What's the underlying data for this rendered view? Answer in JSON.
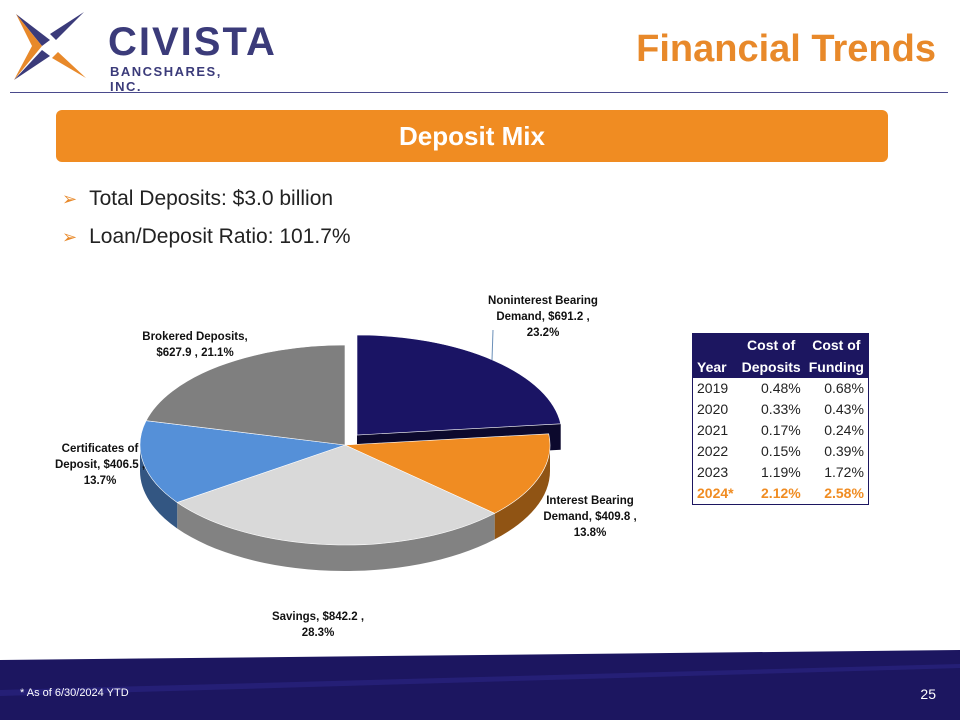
{
  "brand": {
    "name": "CIVISTA",
    "sub": "BANCSHARES, INC."
  },
  "title": "Financial Trends",
  "banner": "Deposit Mix",
  "bullets": [
    "Total Deposits: $3.0 billion",
    "Loan/Deposit Ratio: 101.7%"
  ],
  "chart_data": {
    "type": "pie",
    "title": "Deposit Mix",
    "slices": [
      {
        "name": "Noninterest Bearing Demand",
        "value": 691.2,
        "percent": 23.2,
        "label1": "Noninterest Bearing",
        "label2": "Demand, $691.2 ,",
        "label3": "23.2%",
        "color": "#1a1464"
      },
      {
        "name": "Interest Bearing Demand",
        "value": 409.8,
        "percent": 13.8,
        "label1": "Interest Bearing",
        "label2": "Demand, $409.8 ,",
        "label3": "13.8%",
        "color": "#f08c22"
      },
      {
        "name": "Savings",
        "value": 842.2,
        "percent": 28.3,
        "label1": "Savings, $842.2 ,",
        "label2": "28.3%",
        "label3": "",
        "color": "#d9d9d9"
      },
      {
        "name": "Certificates of Deposit",
        "value": 406.5,
        "percent": 13.7,
        "label1": "Certificates of",
        "label2": "Deposit, $406.5 ,",
        "label3": "13.7%",
        "color": "#5590d8"
      },
      {
        "name": "Brokered Deposits",
        "value": 627.9,
        "percent": 21.1,
        "label1": "Brokered Deposits,",
        "label2": "$627.9 , 21.1%",
        "label3": "",
        "color": "#7f7f7f"
      }
    ]
  },
  "table": {
    "headers": [
      [
        "",
        "Cost of",
        "Cost of"
      ],
      [
        "Year",
        "Deposits",
        "Funding"
      ]
    ],
    "rows": [
      [
        "2019",
        "0.48%",
        "0.68%"
      ],
      [
        "2020",
        "0.33%",
        "0.43%"
      ],
      [
        "2021",
        "0.17%",
        "0.24%"
      ],
      [
        "2022",
        "0.15%",
        "0.39%"
      ],
      [
        "2023",
        "1.19%",
        "1.72%"
      ],
      [
        "2024*",
        "2.12%",
        "2.58%"
      ]
    ]
  },
  "footnote": "* As of 6/30/2024 YTD",
  "page_number": "25"
}
